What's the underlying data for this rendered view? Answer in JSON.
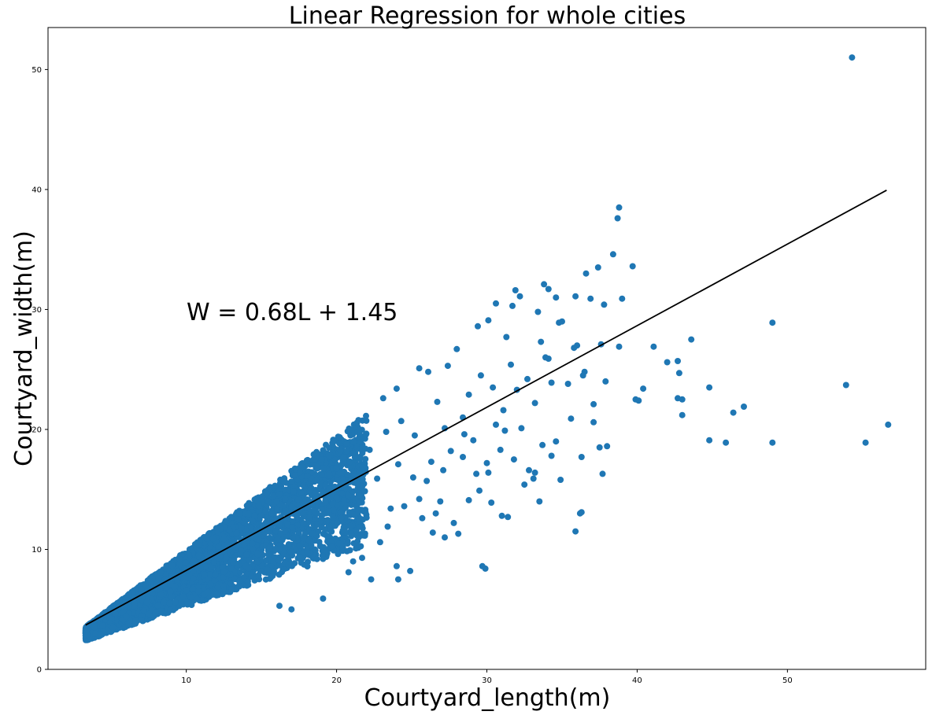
{
  "chart_data": {
    "type": "scatter",
    "title": "Linear Regression for whole cities",
    "xlabel": "Courtyard_length(m)",
    "ylabel": "Courtyard_width(m)",
    "xlim": [
      0.8,
      59.2
    ],
    "ylim": [
      0,
      53.5
    ],
    "xticks": [
      10,
      20,
      30,
      40,
      50
    ],
    "yticks": [
      0,
      10,
      20,
      30,
      40,
      50
    ],
    "grid": false,
    "point_color": "#1f77b4",
    "line_color": "#000000",
    "regression": {
      "equation": "W = 0.68L + 1.45",
      "slope": 0.68,
      "intercept": 1.45,
      "x_range": [
        3.3,
        56.6
      ]
    },
    "dense_band": {
      "description": "thousands of overlapping points",
      "x_range": [
        3.3,
        22
      ],
      "upper_slope": 0.95,
      "lower_slope": 0.42
    },
    "outliers": [
      [
        54.3,
        51.0
      ],
      [
        38.8,
        38.5
      ],
      [
        38.7,
        37.6
      ],
      [
        38.4,
        34.6
      ],
      [
        39.7,
        33.6
      ],
      [
        37.4,
        33.5
      ],
      [
        36.6,
        33.0
      ],
      [
        33.8,
        32.1
      ],
      [
        34.1,
        31.7
      ],
      [
        31.9,
        31.6
      ],
      [
        35.9,
        31.1
      ],
      [
        39.0,
        30.9
      ],
      [
        34.6,
        31.0
      ],
      [
        32.2,
        31.1
      ],
      [
        30.6,
        30.5
      ],
      [
        31.7,
        30.3
      ],
      [
        37.8,
        30.4
      ],
      [
        36.9,
        30.9
      ],
      [
        33.4,
        29.8
      ],
      [
        34.8,
        28.9
      ],
      [
        49.0,
        28.9
      ],
      [
        43.6,
        27.5
      ],
      [
        41.1,
        26.9
      ],
      [
        37.6,
        27.1
      ],
      [
        38.8,
        26.9
      ],
      [
        36.0,
        27.0
      ],
      [
        42.7,
        25.7
      ],
      [
        42.0,
        25.6
      ],
      [
        42.8,
        24.7
      ],
      [
        33.9,
        26.0
      ],
      [
        35.4,
        23.8
      ],
      [
        37.9,
        24.0
      ],
      [
        36.5,
        24.8
      ],
      [
        40.4,
        23.4
      ],
      [
        39.9,
        22.5
      ],
      [
        44.8,
        23.5
      ],
      [
        42.7,
        22.6
      ],
      [
        43.0,
        22.5
      ],
      [
        53.9,
        23.7
      ],
      [
        47.1,
        21.9
      ],
      [
        46.4,
        21.4
      ],
      [
        43.0,
        21.2
      ],
      [
        40.1,
        22.4
      ],
      [
        37.1,
        22.1
      ],
      [
        56.7,
        20.4
      ],
      [
        44.8,
        19.1
      ],
      [
        45.9,
        18.9
      ],
      [
        49.0,
        18.9
      ],
      [
        55.2,
        18.9
      ],
      [
        38.0,
        18.6
      ],
      [
        37.5,
        18.5
      ],
      [
        36.3,
        17.7
      ],
      [
        37.7,
        16.3
      ],
      [
        34.3,
        17.8
      ],
      [
        34.9,
        15.8
      ],
      [
        33.1,
        15.9
      ],
      [
        36.3,
        13.1
      ],
      [
        36.2,
        13.0
      ],
      [
        35.9,
        11.5
      ],
      [
        33.5,
        14.0
      ],
      [
        31.4,
        12.7
      ],
      [
        31.0,
        12.8
      ],
      [
        30.3,
        13.9
      ],
      [
        29.7,
        8.6
      ],
      [
        29.9,
        8.4
      ],
      [
        28.1,
        11.3
      ],
      [
        27.2,
        11.0
      ],
      [
        26.4,
        11.4
      ],
      [
        24.9,
        8.2
      ],
      [
        24.0,
        8.6
      ],
      [
        24.1,
        7.5
      ],
      [
        22.3,
        7.5
      ],
      [
        19.1,
        5.9
      ],
      [
        17.0,
        5.0
      ],
      [
        16.2,
        5.3
      ],
      [
        32.8,
        16.6
      ],
      [
        31.8,
        17.5
      ],
      [
        30.9,
        18.3
      ],
      [
        32.5,
        15.4
      ],
      [
        33.2,
        16.4
      ],
      [
        29.5,
        14.9
      ],
      [
        30.1,
        16.4
      ],
      [
        28.8,
        14.1
      ],
      [
        27.1,
        16.6
      ],
      [
        26.0,
        15.7
      ],
      [
        25.5,
        14.2
      ],
      [
        24.5,
        13.6
      ],
      [
        22.9,
        10.6
      ],
      [
        23.4,
        11.9
      ],
      [
        21.7,
        9.3
      ],
      [
        20.8,
        8.1
      ],
      [
        21.1,
        9.0
      ],
      [
        30.6,
        20.4
      ],
      [
        29.1,
        19.1
      ],
      [
        31.2,
        19.9
      ],
      [
        28.4,
        21.0
      ],
      [
        27.2,
        20.1
      ],
      [
        26.7,
        22.3
      ],
      [
        29.6,
        24.5
      ],
      [
        30.4,
        23.5
      ],
      [
        31.6,
        25.4
      ],
      [
        32.7,
        24.2
      ],
      [
        33.2,
        22.2
      ],
      [
        34.3,
        23.9
      ],
      [
        28.0,
        26.7
      ],
      [
        29.4,
        28.6
      ],
      [
        30.1,
        29.1
      ],
      [
        31.3,
        27.7
      ],
      [
        27.4,
        25.3
      ],
      [
        26.1,
        24.8
      ],
      [
        25.5,
        25.1
      ],
      [
        24.0,
        23.4
      ],
      [
        23.1,
        22.6
      ],
      [
        28.8,
        22.9
      ],
      [
        27.6,
        18.2
      ],
      [
        26.3,
        17.3
      ],
      [
        25.2,
        19.5
      ],
      [
        24.1,
        17.1
      ],
      [
        22.7,
        15.9
      ],
      [
        23.6,
        13.4
      ],
      [
        25.7,
        12.6
      ],
      [
        26.9,
        14.0
      ],
      [
        28.4,
        17.7
      ],
      [
        29.3,
        16.3
      ],
      [
        31.1,
        21.6
      ],
      [
        32.0,
        23.3
      ],
      [
        34.1,
        25.9
      ],
      [
        35.0,
        29.0
      ],
      [
        33.6,
        27.3
      ],
      [
        36.4,
        24.5
      ],
      [
        35.8,
        26.8
      ],
      [
        37.1,
        20.6
      ],
      [
        35.6,
        20.9
      ],
      [
        34.6,
        19.0
      ],
      [
        33.7,
        18.7
      ],
      [
        32.3,
        20.1
      ],
      [
        30.0,
        17.2
      ],
      [
        28.5,
        19.6
      ],
      [
        27.8,
        12.2
      ],
      [
        26.6,
        13.0
      ],
      [
        25.1,
        16.0
      ],
      [
        24.3,
        20.7
      ],
      [
        23.3,
        19.8
      ],
      [
        22.2,
        18.3
      ],
      [
        21.5,
        14.5
      ]
    ]
  }
}
